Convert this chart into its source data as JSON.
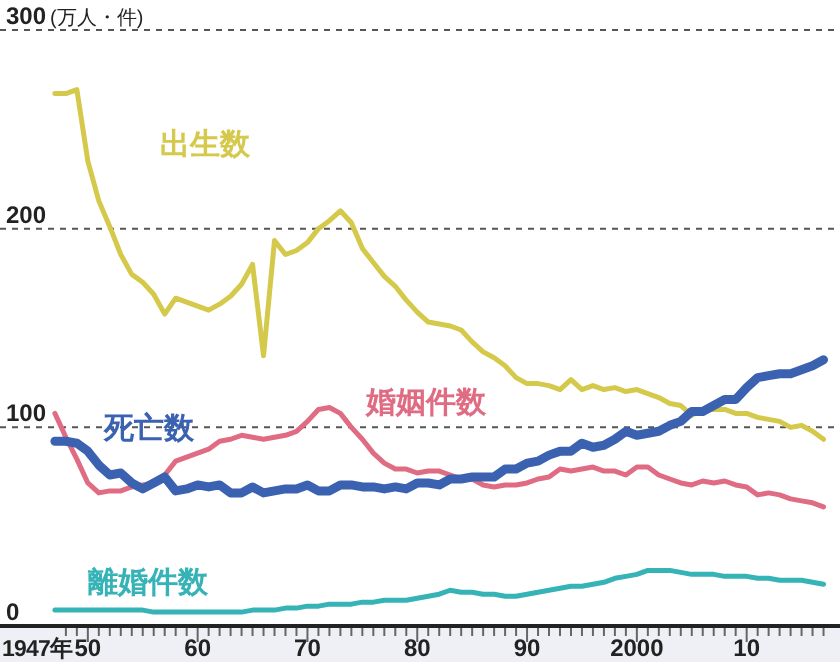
{
  "chart_data": {
    "type": "line",
    "ylabel": "(万人・件)",
    "annotations": [
      "1947年"
    ],
    "x": [
      1947,
      1948,
      1949,
      1950,
      1951,
      1952,
      1953,
      1954,
      1955,
      1956,
      1957,
      1958,
      1959,
      1960,
      1961,
      1962,
      1963,
      1964,
      1965,
      1966,
      1967,
      1968,
      1969,
      1970,
      1971,
      1972,
      1973,
      1974,
      1975,
      1976,
      1977,
      1978,
      1979,
      1980,
      1981,
      1982,
      1983,
      1984,
      1985,
      1986,
      1987,
      1988,
      1989,
      1990,
      1991,
      1992,
      1993,
      1994,
      1995,
      1996,
      1997,
      1998,
      1999,
      2000,
      2001,
      2002,
      2003,
      2004,
      2005,
      2006,
      2007,
      2008,
      2009,
      2010,
      2011,
      2012,
      2013,
      2014,
      2015,
      2016,
      2017
    ],
    "series": [
      {
        "name": "出生数",
        "color": "#d4c94a",
        "values": [
          268,
          268,
          270,
          234,
          214,
          201,
          187,
          177,
          173,
          167,
          157,
          165,
          163,
          161,
          159,
          162,
          166,
          172,
          182,
          136,
          194,
          187,
          189,
          193,
          200,
          204,
          209,
          203,
          190,
          183,
          176,
          171,
          164,
          158,
          153,
          152,
          151,
          149,
          143,
          138,
          135,
          131,
          125,
          122,
          122,
          121,
          119,
          124,
          119,
          121,
          119,
          120,
          118,
          119,
          117,
          115,
          112,
          111,
          106,
          109,
          109,
          109,
          107,
          107,
          105,
          104,
          103,
          100,
          101,
          98,
          94
        ]
      },
      {
        "name": "死亡数",
        "color": "#3a62b0",
        "values": [
          93,
          93,
          92,
          88,
          81,
          76,
          77,
          72,
          69,
          72,
          75,
          68,
          69,
          71,
          70,
          71,
          67,
          67,
          70,
          67,
          68,
          69,
          69,
          71,
          68,
          68,
          71,
          71,
          70,
          70,
          69,
          70,
          69,
          72,
          72,
          71,
          74,
          74,
          75,
          75,
          75,
          79,
          79,
          82,
          83,
          86,
          88,
          88,
          92,
          90,
          91,
          94,
          98,
          96,
          97,
          98,
          101,
          103,
          108,
          108,
          111,
          114,
          114,
          120,
          125,
          126,
          127,
          127,
          129,
          131,
          134
        ]
      },
      {
        "name": "婚姻件数",
        "color": "#e06c84",
        "values": [
          107,
          95,
          84,
          72,
          67,
          68,
          68,
          70,
          71,
          72,
          76,
          83,
          85,
          87,
          89,
          93,
          94,
          96,
          95,
          94,
          95,
          96,
          98,
          103,
          109,
          110,
          107,
          100,
          94,
          87,
          82,
          79,
          79,
          77,
          78,
          78,
          76,
          74,
          74,
          71,
          70,
          71,
          71,
          72,
          74,
          75,
          79,
          78,
          79,
          80,
          78,
          78,
          76,
          80,
          80,
          76,
          74,
          72,
          71,
          73,
          72,
          73,
          71,
          70,
          66,
          67,
          66,
          64,
          63,
          62,
          60
        ]
      },
      {
        "name": "離婚件数",
        "color": "#35b3b6",
        "values": [
          8,
          8,
          8,
          8,
          8,
          8,
          8,
          8,
          8,
          7,
          7,
          7,
          7,
          7,
          7,
          7,
          7,
          7,
          8,
          8,
          8,
          9,
          9,
          10,
          10,
          11,
          11,
          11,
          12,
          12,
          13,
          13,
          13,
          14,
          15,
          16,
          18,
          17,
          17,
          16,
          16,
          15,
          15,
          16,
          17,
          18,
          19,
          20,
          20,
          21,
          22,
          24,
          25,
          26,
          28,
          28,
          28,
          27,
          26,
          26,
          26,
          25,
          25,
          25,
          24,
          24,
          23,
          23,
          23,
          22,
          21
        ]
      }
    ],
    "xlim": [
      1942,
      2018.5
    ],
    "ylim": [
      0,
      300
    ],
    "xticks": [
      {
        "value": 1948,
        "label": null
      },
      {
        "value": 1949,
        "label": null
      },
      {
        "value": 1950,
        "label": "50"
      },
      {
        "value": 1951,
        "label": null
      },
      {
        "value": 1952,
        "label": null
      },
      {
        "value": 1953,
        "label": null
      },
      {
        "value": 1954,
        "label": null
      },
      {
        "value": 1955,
        "label": null
      },
      {
        "value": 1956,
        "label": null
      },
      {
        "value": 1957,
        "label": null
      },
      {
        "value": 1958,
        "label": null
      },
      {
        "value": 1959,
        "label": null
      },
      {
        "value": 1960,
        "label": "60"
      },
      {
        "value": 1961,
        "label": null
      },
      {
        "value": 1962,
        "label": null
      },
      {
        "value": 1963,
        "label": null
      },
      {
        "value": 1964,
        "label": null
      },
      {
        "value": 1965,
        "label": null
      },
      {
        "value": 1966,
        "label": null
      },
      {
        "value": 1967,
        "label": null
      },
      {
        "value": 1968,
        "label": null
      },
      {
        "value": 1969,
        "label": null
      },
      {
        "value": 1970,
        "label": "70"
      },
      {
        "value": 1971,
        "label": null
      },
      {
        "value": 1972,
        "label": null
      },
      {
        "value": 1973,
        "label": null
      },
      {
        "value": 1974,
        "label": null
      },
      {
        "value": 1975,
        "label": null
      },
      {
        "value": 1976,
        "label": null
      },
      {
        "value": 1977,
        "label": null
      },
      {
        "value": 1978,
        "label": null
      },
      {
        "value": 1979,
        "label": null
      },
      {
        "value": 1980,
        "label": "80"
      },
      {
        "value": 1981,
        "label": null
      },
      {
        "value": 1982,
        "label": null
      },
      {
        "value": 1983,
        "label": null
      },
      {
        "value": 1984,
        "label": null
      },
      {
        "value": 1985,
        "label": null
      },
      {
        "value": 1986,
        "label": null
      },
      {
        "value": 1987,
        "label": null
      },
      {
        "value": 1988,
        "label": null
      },
      {
        "value": 1989,
        "label": null
      },
      {
        "value": 1990,
        "label": "90"
      },
      {
        "value": 1991,
        "label": null
      },
      {
        "value": 1992,
        "label": null
      },
      {
        "value": 1993,
        "label": null
      },
      {
        "value": 1994,
        "label": null
      },
      {
        "value": 1995,
        "label": null
      },
      {
        "value": 1996,
        "label": null
      },
      {
        "value": 1997,
        "label": null
      },
      {
        "value": 1998,
        "label": null
      },
      {
        "value": 1999,
        "label": null
      },
      2000,
      {
        "value": 2001,
        "label": null
      },
      {
        "value": 2002,
        "label": null
      },
      {
        "value": 2003,
        "label": null
      },
      {
        "value": 2004,
        "label": null
      },
      {
        "value": 2005,
        "label": null
      },
      {
        "value": 2006,
        "label": null
      },
      {
        "value": 2007,
        "label": null
      },
      {
        "value": 2008,
        "label": null
      },
      {
        "value": 2009,
        "label": null
      },
      {
        "value": 2010,
        "label": "10"
      },
      {
        "value": 2011,
        "label": null
      },
      {
        "value": 2012,
        "label": null
      },
      {
        "value": 2013,
        "label": null
      },
      {
        "value": 2014,
        "label": null
      },
      {
        "value": 2015,
        "label": null
      },
      {
        "value": 2016,
        "label": null
      },
      {
        "value": 2017,
        "label": null
      }
    ],
    "yticks": [
      0,
      100,
      200,
      300
    ],
    "grid": "y",
    "line_style": "solid"
  }
}
